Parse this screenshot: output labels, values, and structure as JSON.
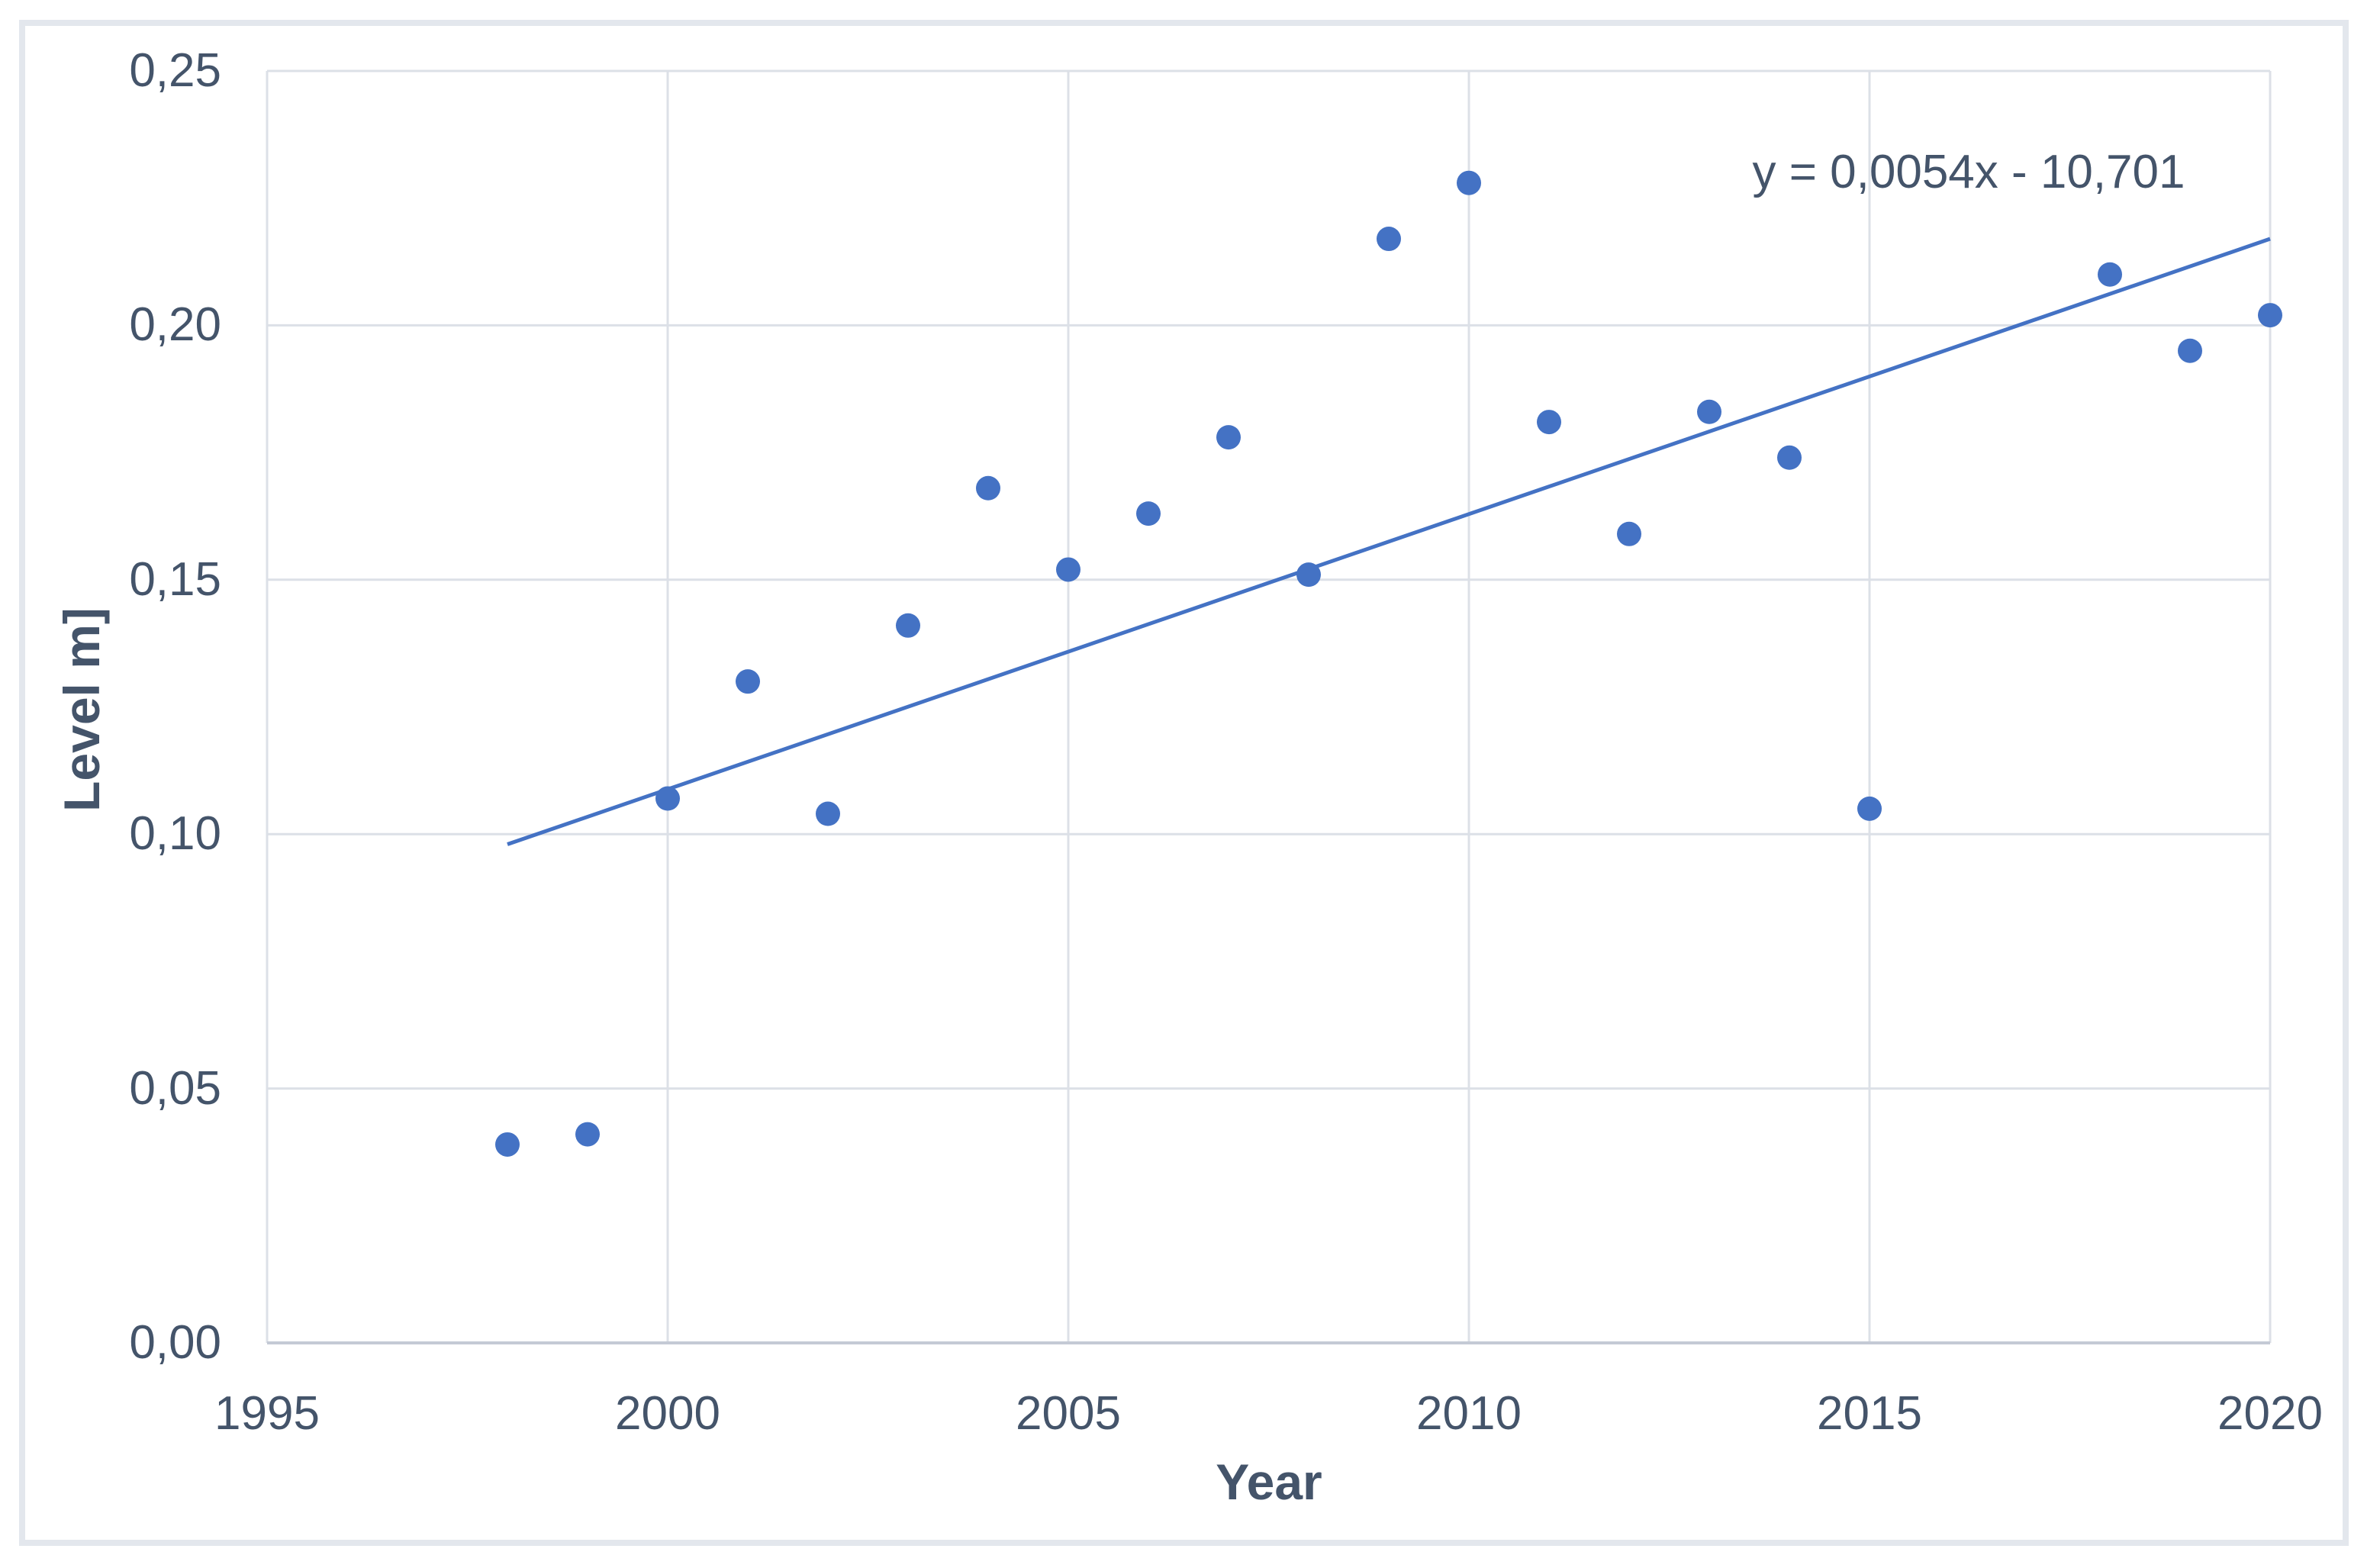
{
  "chart_data": {
    "type": "scatter",
    "title": "",
    "xlabel": "Year",
    "ylabel": "Level m]",
    "equation_annotation": "y = 0,0054x - 10,701",
    "xlim": [
      1995,
      2020
    ],
    "ylim": [
      0,
      0.25
    ],
    "grid": true,
    "legend_position": "none",
    "x_tick_values": [
      1995,
      2000,
      2005,
      2010,
      2015,
      2020
    ],
    "x_tick_labels": [
      "1995",
      "2000",
      "2005",
      "2010",
      "2015",
      "2020"
    ],
    "y_tick_values": [
      0,
      0.05,
      0.1,
      0.15,
      0.2,
      0.25
    ],
    "y_tick_labels": [
      "0,00",
      "0,05",
      "0,10",
      "0,15",
      "0,20",
      "0,25"
    ],
    "series": [
      {
        "name": "Level",
        "marker": "circle",
        "color": "#4472C4",
        "points": [
          [
            1998,
            0.039
          ],
          [
            1999,
            0.041
          ],
          [
            2000,
            0.107
          ],
          [
            2001,
            0.13
          ],
          [
            2002,
            0.104
          ],
          [
            2003,
            0.141
          ],
          [
            2004,
            0.168
          ],
          [
            2005,
            0.152
          ],
          [
            2006,
            0.163
          ],
          [
            2007,
            0.178
          ],
          [
            2008,
            0.151
          ],
          [
            2009,
            0.217
          ],
          [
            2010,
            0.228
          ],
          [
            2011,
            0.181
          ],
          [
            2012,
            0.159
          ],
          [
            2013,
            0.183
          ],
          [
            2014,
            0.174
          ],
          [
            2015,
            0.105
          ],
          [
            2018,
            0.21
          ],
          [
            2019,
            0.195
          ],
          [
            2020,
            0.202
          ]
        ]
      }
    ],
    "trendline": {
      "slope": 0.0054,
      "intercept": -10.701,
      "x_start": 1998,
      "y_start": 0.098,
      "x_end": 2020,
      "y_end": 0.217,
      "color": "#4472C4"
    },
    "colors": {
      "point": "#4472C4",
      "trendline": "#4472C4",
      "gridline": "#DCE0E7",
      "axis_line": "#C4CAD5",
      "text": "#44546A",
      "frame_border": "#E3E7ED"
    }
  }
}
